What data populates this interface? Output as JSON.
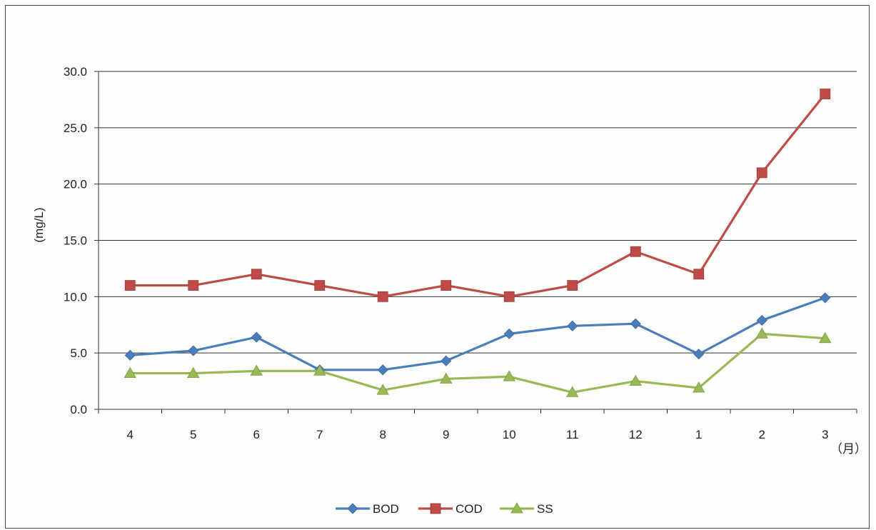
{
  "chart_data": {
    "type": "line",
    "title": "",
    "xlabel": "（月）",
    "ylabel": "(mg/L)",
    "categories": [
      "4",
      "5",
      "6",
      "7",
      "8",
      "9",
      "10",
      "11",
      "12",
      "1",
      "2",
      "3"
    ],
    "ylim": [
      0,
      30
    ],
    "yticks": [
      "0.0",
      "5.0",
      "10.0",
      "15.0",
      "20.0",
      "25.0",
      "30.0"
    ],
    "grid": true,
    "legend_position": "bottom",
    "series": [
      {
        "name": "BOD",
        "color": "#4a7ebb",
        "marker": "diamond",
        "values": [
          4.8,
          5.2,
          6.4,
          3.5,
          3.5,
          4.3,
          6.7,
          7.4,
          7.6,
          4.9,
          7.9,
          9.9
        ]
      },
      {
        "name": "COD",
        "color": "#be4b48",
        "marker": "square",
        "values": [
          11.0,
          11.0,
          12.0,
          11.0,
          10.0,
          11.0,
          10.0,
          11.0,
          14.0,
          12.0,
          21.0,
          28.0
        ]
      },
      {
        "name": "SS",
        "color": "#98b954",
        "marker": "triangle",
        "values": [
          3.2,
          3.2,
          3.4,
          3.4,
          1.7,
          2.7,
          2.9,
          1.5,
          2.5,
          1.9,
          6.7,
          6.3
        ]
      }
    ]
  }
}
